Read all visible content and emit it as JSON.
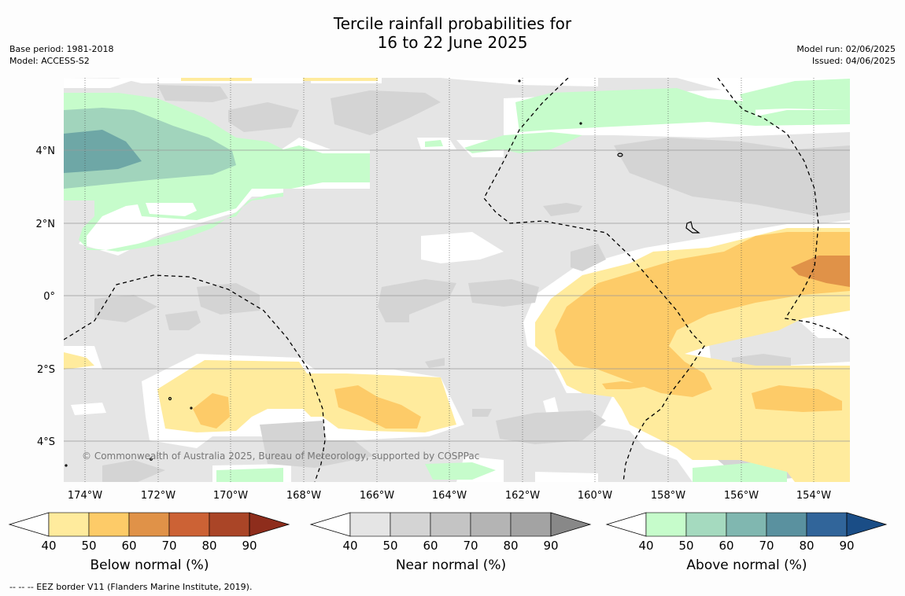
{
  "header": {
    "title_line1": "Tercile rainfall probabilities for",
    "title_line2": "16 to 22 June 2025",
    "base_period": "Base period: 1981-2018",
    "model": "Model: ACCESS-S2",
    "model_run": "Model run: 02/06/2025",
    "issued": "Issued: 04/06/2025"
  },
  "map": {
    "lat_labels": [
      "4°N",
      "2°N",
      "0°",
      "2°S",
      "4°S"
    ],
    "lon_labels": [
      "174°W",
      "172°W",
      "170°W",
      "168°W",
      "166°W",
      "164°W",
      "162°W",
      "160°W",
      "158°W",
      "156°W",
      "154°W"
    ],
    "copyright": "© Commonwealth of Australia 2025, Bureau of Meteorology, supported by COSPPac",
    "colors": {
      "background_near_normal_low": "#e5e5e5",
      "near_normal_50": "#d4d4d4",
      "below_40": "#ffeb9d",
      "below_50": "#fdcb68",
      "below_60": "#e09248",
      "above_40": "#c6fccb",
      "above_50": "#a1d4bc",
      "above_60": "#6ea7a6"
    }
  },
  "colorbars": [
    {
      "name": "Below normal (%)",
      "ticks": [
        "40",
        "50",
        "60",
        "70",
        "80",
        "90"
      ],
      "colors": [
        "#ffeb9d",
        "#fdcb68",
        "#e09248",
        "#cc6235",
        "#aa4527",
        "#8e2d1c"
      ]
    },
    {
      "name": "Near normal (%)",
      "ticks": [
        "40",
        "50",
        "60",
        "70",
        "80",
        "90"
      ],
      "colors": [
        "#e5e5e5",
        "#d4d4d4",
        "#c4c4c4",
        "#b4b4b4",
        "#a3a3a3",
        "#888888"
      ]
    },
    {
      "name": "Above normal (%)",
      "ticks": [
        "40",
        "50",
        "60",
        "70",
        "80",
        "90"
      ],
      "colors": [
        "#c6fccb",
        "#a5dabf",
        "#80b7b0",
        "#5a919f",
        "#31659a",
        "#1a4d86"
      ]
    }
  ],
  "footnote": "--  --  -- EEZ border V11 (Flanders Marine Institute, 2019)."
}
